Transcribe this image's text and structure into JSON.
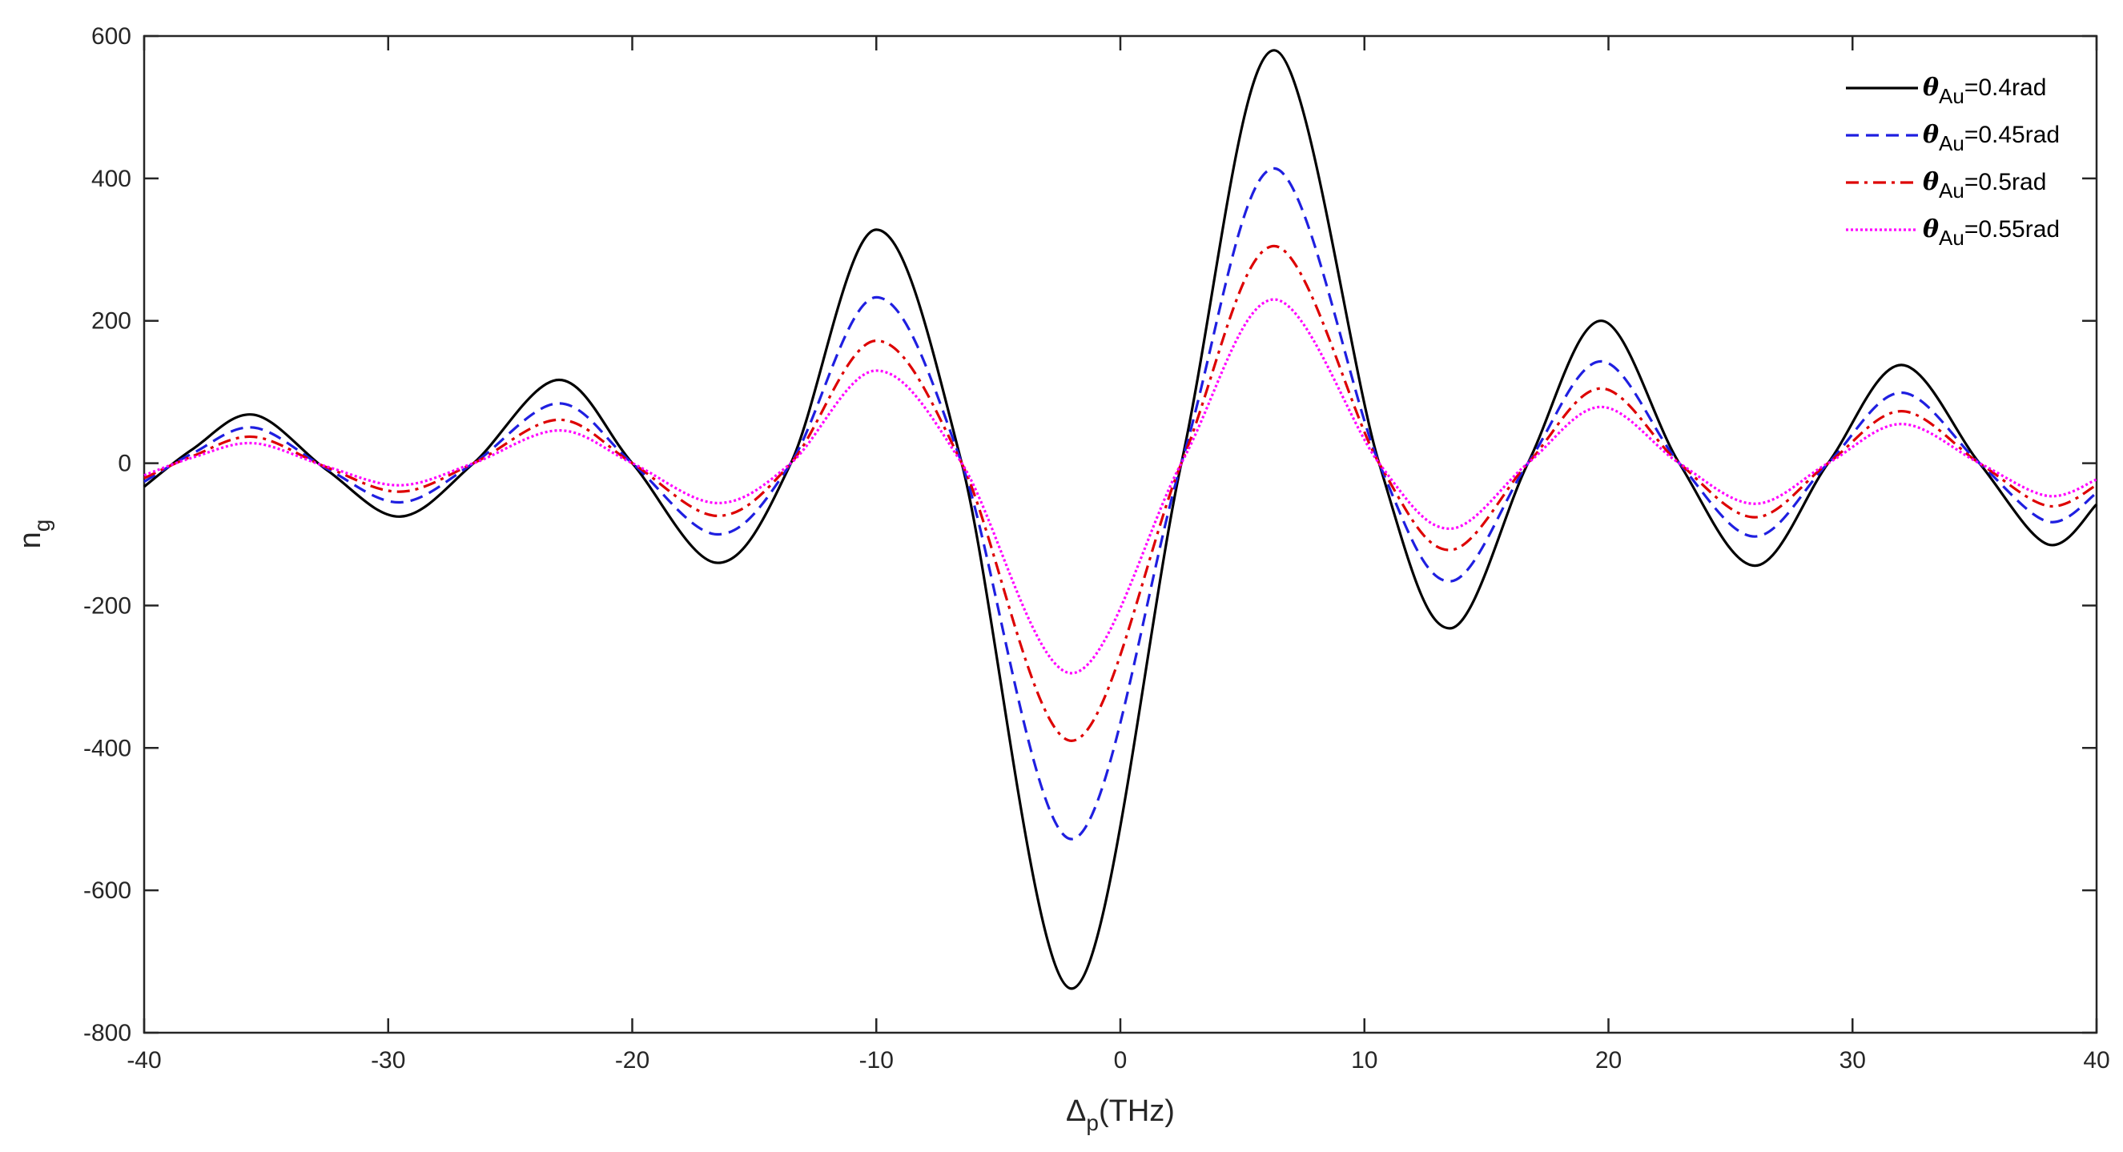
{
  "chart_data": {
    "type": "line",
    "title": "",
    "xlabel": {
      "main": "Δ",
      "sub": "p",
      "rest": "(THz)"
    },
    "ylabel": {
      "main": "n",
      "sub": "g"
    },
    "xlim": [
      -40,
      40
    ],
    "ylim": [
      -800,
      600
    ],
    "xticks": [
      -40,
      -30,
      -20,
      -10,
      0,
      10,
      20,
      30,
      40
    ],
    "yticks": [
      600,
      400,
      200,
      0,
      -200,
      -400,
      -600,
      -800
    ],
    "grid": false,
    "legend_position": "top-right",
    "x": [
      -40,
      -38,
      -35.5,
      -32.5,
      -29.5,
      -26.5,
      -23,
      -20,
      -16.5,
      -13.5,
      -10,
      -6.5,
      -2,
      2.5,
      6.3,
      10.6,
      13.5,
      16.7,
      19.7,
      22.9,
      26,
      29,
      32,
      35.2,
      38,
      40
    ],
    "series": [
      {
        "name_main": "θ",
        "name_sub": "Au",
        "name_rest": "=0.4rad",
        "color": "#000000",
        "dash": "none",
        "values": [
          -33,
          20,
          68,
          -10,
          -75,
          0,
          117,
          0,
          -140,
          0,
          328,
          0,
          -738,
          0,
          580,
          0,
          -232,
          0,
          200,
          0,
          -144,
          0,
          138,
          0,
          -114,
          -58
        ]
      },
      {
        "name_main": "θ",
        "name_sub": "Au",
        "name_rest": "=0.45rad",
        "color": "#1f1fe0",
        "dash": "16,9",
        "values": [
          -26,
          14,
          50,
          -8,
          -55,
          0,
          84,
          0,
          -100,
          0,
          233,
          0,
          -528,
          0,
          414,
          0,
          -166,
          0,
          143,
          0,
          -103,
          0,
          99,
          0,
          -82,
          -42
        ]
      },
      {
        "name_main": "θ",
        "name_sub": "Au",
        "name_rest": "=0.5rad",
        "color": "#dd0000",
        "dash": "16,7,4,7",
        "values": [
          -21,
          10,
          37,
          -6,
          -40,
          0,
          61,
          0,
          -74,
          0,
          172,
          0,
          -390,
          0,
          305,
          0,
          -122,
          0,
          105,
          0,
          -76,
          0,
          73,
          0,
          -60,
          -31
        ]
      },
      {
        "name_main": "θ",
        "name_sub": "Au",
        "name_rest": "=0.55rad",
        "color": "#ff00ff",
        "dash": "3,3",
        "values": [
          -17,
          8,
          28,
          -5,
          -31,
          0,
          46,
          0,
          -56,
          0,
          130,
          0,
          -295,
          0,
          230,
          0,
          -92,
          0,
          79,
          0,
          -57,
          0,
          55,
          0,
          -46,
          -23
        ]
      }
    ]
  }
}
